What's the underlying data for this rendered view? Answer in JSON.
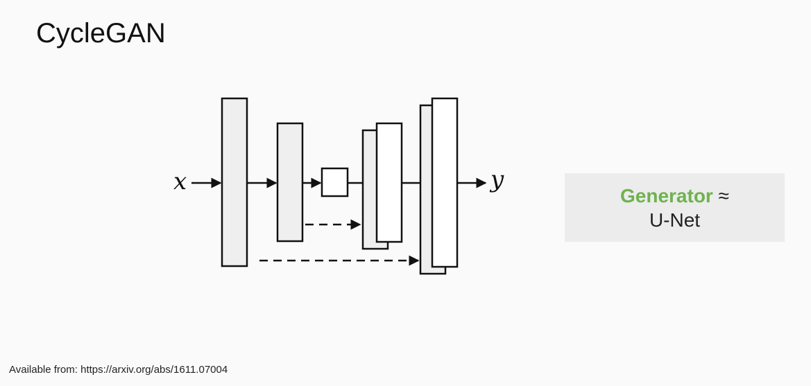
{
  "slide": {
    "title": "CycleGAN"
  },
  "diagram": {
    "input_label": "x",
    "output_label": "y"
  },
  "callout": {
    "highlight": "Generator",
    "approx_symbol": "≈",
    "text": "U-Net"
  },
  "footer": {
    "citation": "Available from: https://arxiv.org/abs/1611.07004"
  },
  "colors": {
    "highlight_green": "#6fb24f",
    "block_fill": "#efefef",
    "callout_bg": "#ececec"
  }
}
